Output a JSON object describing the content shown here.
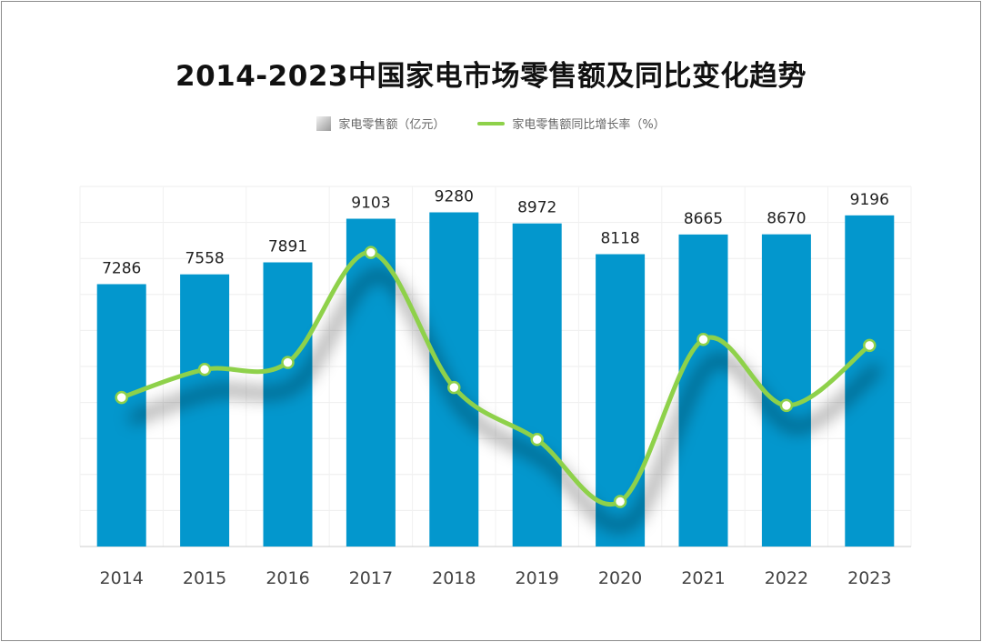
{
  "chart_data": {
    "type": "bar",
    "title": "2014-2023中国家电市场零售额及同比变化趋势",
    "categories": [
      "2014",
      "2015",
      "2016",
      "2017",
      "2018",
      "2019",
      "2020",
      "2021",
      "2022",
      "2023"
    ],
    "series": [
      {
        "name": "家电零售额（亿元）",
        "type": "bar",
        "values": [
          7286,
          7558,
          7891,
          9103,
          9280,
          8972,
          8118,
          8665,
          8670,
          9196
        ],
        "color": "#0397cd"
      },
      {
        "name": "家电零售额同比增长率（%）",
        "type": "line",
        "smooth": true,
        "values": [
          0.9,
          3.7,
          4.4,
          15.4,
          1.9,
          -3.3,
          -9.5,
          6.7,
          0.1,
          6.1
        ],
        "color": "#8ed14a"
      }
    ],
    "bar_axis_range": [
      0,
      10000
    ],
    "line_axis_range": [
      -14,
      22
    ],
    "grid": true,
    "legend_position": "top-center"
  }
}
